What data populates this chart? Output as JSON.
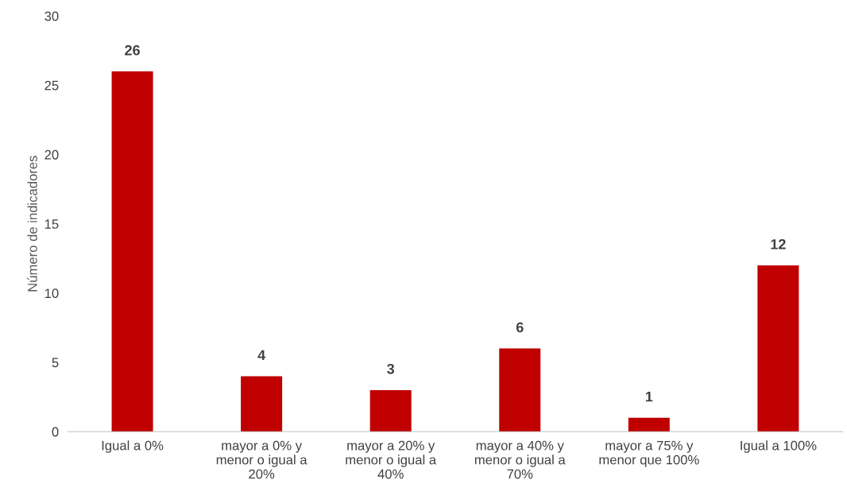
{
  "chart_data": {
    "type": "bar",
    "ylabel": "Número de indicadores",
    "categories": [
      "Igual a 0%",
      "mayor a 0% y\nmenor o igual a\n20%",
      "mayor a 20% y\nmenor o igual a\n40%",
      "mayor a 40% y\nmenor o igual a\n70%",
      "mayor a 75% y\nmenor que 100%",
      "Igual a 100%"
    ],
    "values": [
      26,
      4,
      3,
      6,
      1,
      12
    ],
    "color": "#c00000",
    "ylim": [
      0,
      30
    ],
    "yticks": [
      0,
      5,
      10,
      15,
      20,
      25,
      30
    ],
    "grid": false,
    "data_labels": true
  }
}
